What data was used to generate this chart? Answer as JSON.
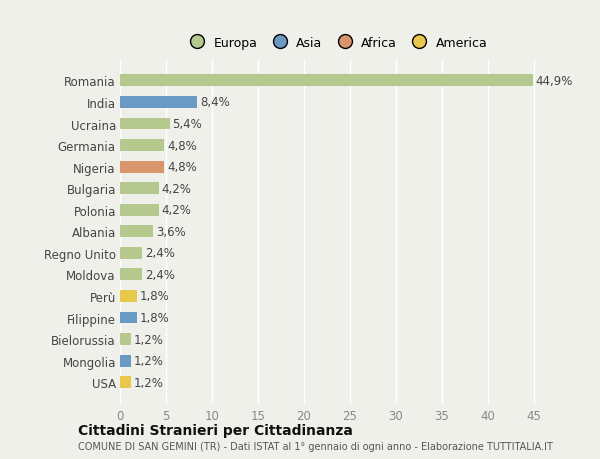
{
  "categories": [
    "Romania",
    "India",
    "Ucraina",
    "Germania",
    "Nigeria",
    "Bulgaria",
    "Polonia",
    "Albania",
    "Regno Unito",
    "Moldova",
    "Perù",
    "Filippine",
    "Bielorussia",
    "Mongolia",
    "USA"
  ],
  "values": [
    44.9,
    8.4,
    5.4,
    4.8,
    4.8,
    4.2,
    4.2,
    3.6,
    2.4,
    2.4,
    1.8,
    1.8,
    1.2,
    1.2,
    1.2
  ],
  "labels": [
    "44,9%",
    "8,4%",
    "5,4%",
    "4,8%",
    "4,8%",
    "4,2%",
    "4,2%",
    "3,6%",
    "2,4%",
    "2,4%",
    "1,8%",
    "1,8%",
    "1,2%",
    "1,2%",
    "1,2%"
  ],
  "colors": [
    "#b5c98e",
    "#6a9ac4",
    "#b5c98e",
    "#b5c98e",
    "#d9956b",
    "#b5c98e",
    "#b5c98e",
    "#b5c98e",
    "#b5c98e",
    "#b5c98e",
    "#e8c84a",
    "#6a9ac4",
    "#b5c98e",
    "#6a9ac4",
    "#e8c84a"
  ],
  "legend_labels": [
    "Europa",
    "Asia",
    "Africa",
    "America"
  ],
  "legend_colors": [
    "#b5c98e",
    "#6a9ac4",
    "#d9956b",
    "#e8c84a"
  ],
  "xlim": [
    0,
    47
  ],
  "xticks": [
    0,
    5,
    10,
    15,
    20,
    25,
    30,
    35,
    40,
    45
  ],
  "title": "Cittadini Stranieri per Cittadinanza",
  "subtitle": "COMUNE DI SAN GEMINI (TR) - Dati ISTAT al 1° gennaio di ogni anno - Elaborazione TUTTITALIA.IT",
  "background_color": "#f0f0eb",
  "grid_color": "#ffffff",
  "label_fontsize": 8.5,
  "ytick_fontsize": 8.5,
  "xtick_fontsize": 8.5,
  "bar_height": 0.55
}
